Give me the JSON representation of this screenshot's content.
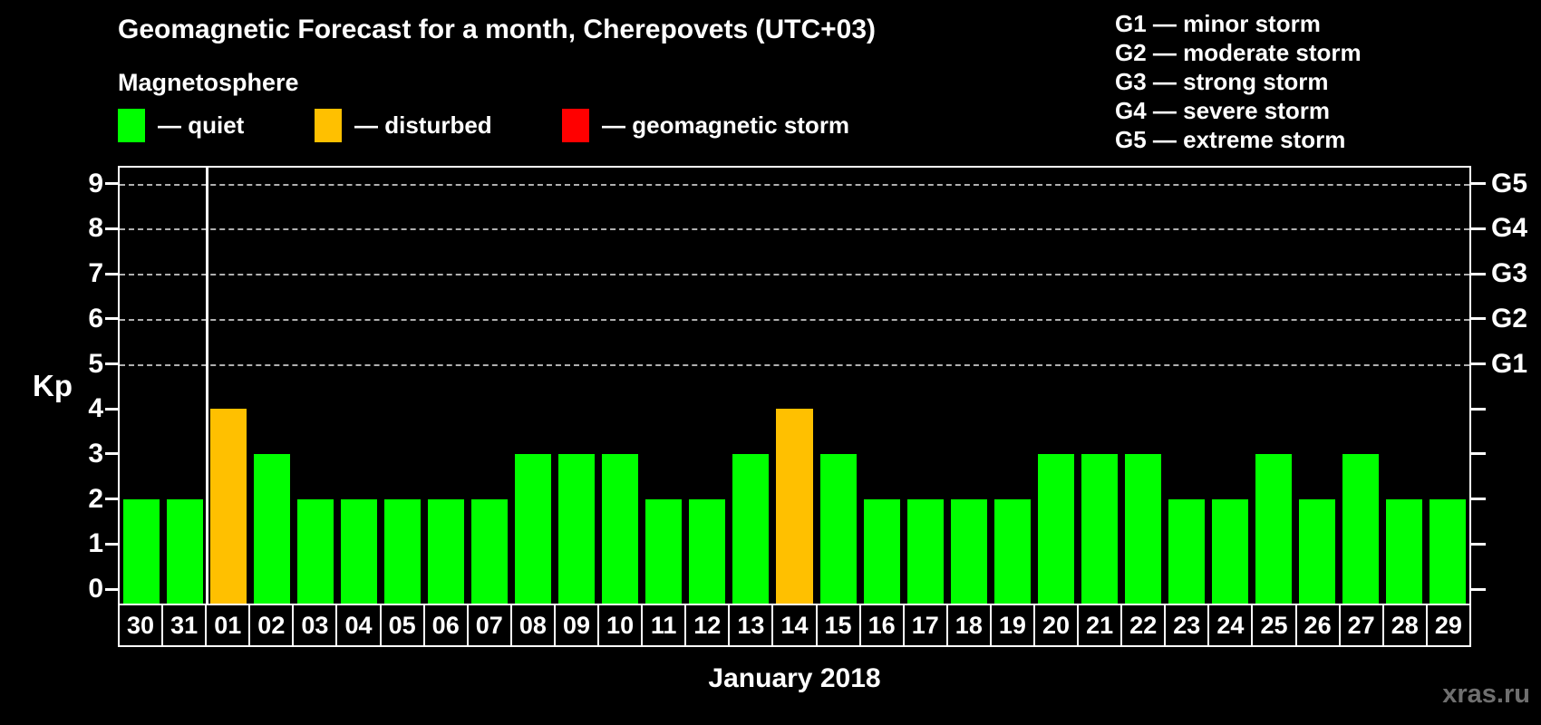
{
  "header": {
    "subtitle": "Magnetosphere"
  },
  "legend": {
    "items": [
      {
        "name": "quiet",
        "label": "— quiet",
        "color": "#00ff00"
      },
      {
        "name": "disturbed",
        "label": "— disturbed",
        "color": "#ffc000"
      },
      {
        "name": "storm",
        "label": "— geomagnetic storm",
        "color": "#ff0000"
      }
    ]
  },
  "g_legend": {
    "items": [
      "G1 — minor storm",
      "G2 — moderate storm",
      "G3 — strong storm",
      "G4 — severe storm",
      "G5 — extreme storm"
    ]
  },
  "chart_data": {
    "type": "bar",
    "title": "Geomagnetic Forecast for a month, Cherepovets (UTC+03)",
    "xlabel": "January 2018",
    "ylabel": "Kp",
    "ylim": [
      0,
      9
    ],
    "yticks": [
      0,
      1,
      2,
      3,
      4,
      5,
      6,
      7,
      8,
      9
    ],
    "gridlines_at": [
      5,
      6,
      7,
      8,
      9
    ],
    "grid": "dashed horizontal lines at Kp 5-9",
    "legend_position": "top",
    "categories": [
      "30",
      "31",
      "01",
      "02",
      "03",
      "04",
      "05",
      "06",
      "07",
      "08",
      "09",
      "10",
      "11",
      "12",
      "13",
      "14",
      "15",
      "16",
      "17",
      "18",
      "19",
      "20",
      "21",
      "22",
      "23",
      "24",
      "25",
      "26",
      "27",
      "28",
      "29"
    ],
    "values": [
      2,
      2,
      4,
      3,
      2,
      2,
      2,
      2,
      2,
      3,
      3,
      3,
      2,
      2,
      3,
      4,
      3,
      2,
      2,
      2,
      2,
      3,
      3,
      3,
      2,
      2,
      3,
      2,
      3,
      2,
      2
    ],
    "statuses": [
      "quiet",
      "quiet",
      "disturbed",
      "quiet",
      "quiet",
      "quiet",
      "quiet",
      "quiet",
      "quiet",
      "quiet",
      "quiet",
      "quiet",
      "quiet",
      "quiet",
      "quiet",
      "disturbed",
      "quiet",
      "quiet",
      "quiet",
      "quiet",
      "quiet",
      "quiet",
      "quiet",
      "quiet",
      "quiet",
      "quiet",
      "quiet",
      "quiet",
      "quiet",
      "quiet",
      "quiet"
    ],
    "month_separator_after_index": 1,
    "right_axis": [
      {
        "label": "G1",
        "value": 5
      },
      {
        "label": "G2",
        "value": 6
      },
      {
        "label": "G3",
        "value": 7
      },
      {
        "label": "G4",
        "value": 8
      },
      {
        "label": "G5",
        "value": 9
      }
    ]
  },
  "status_colors": {
    "quiet": "#00ff00",
    "disturbed": "#ffc000",
    "storm": "#ff0000"
  },
  "watermark": "xras.ru"
}
